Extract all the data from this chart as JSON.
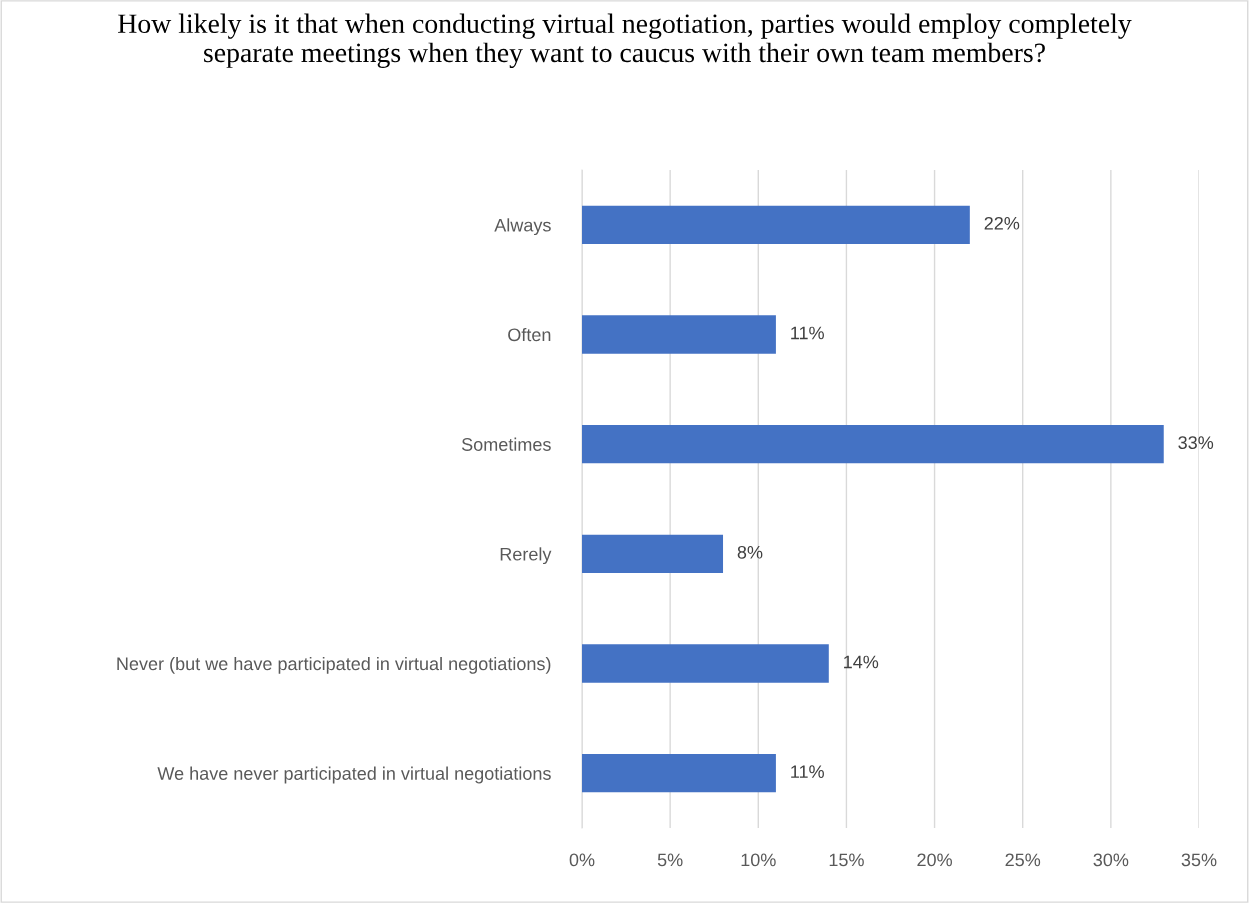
{
  "chart_data": {
    "type": "bar",
    "orientation": "horizontal",
    "title": "How likely is it that when conducting virtual negotiation, parties would employ completely separate meetings when they want to caucus with their own team members?",
    "categories": [
      "Always",
      "Often",
      "Sometimes",
      "Rerely",
      "Never (but we have participated in virtual negotiations)",
      "We have never participated in virtual negotiations"
    ],
    "values": [
      22,
      11,
      33,
      8,
      14,
      11
    ],
    "value_labels": [
      "22%",
      "11%",
      "33%",
      "8%",
      "14%",
      "11%"
    ],
    "color": "#4472c4",
    "xlim": [
      0,
      35
    ],
    "xticks": [
      {
        "value": 0,
        "label": "0%"
      },
      {
        "value": 5,
        "label": "5%"
      },
      {
        "value": 10,
        "label": "10%"
      },
      {
        "value": 15,
        "label": "15%"
      },
      {
        "value": 20,
        "label": "20%"
      },
      {
        "value": 25,
        "label": "25%"
      },
      {
        "value": 30,
        "label": "30%"
      },
      {
        "value": 35,
        "label": "35%"
      }
    ],
    "grid": "x"
  }
}
